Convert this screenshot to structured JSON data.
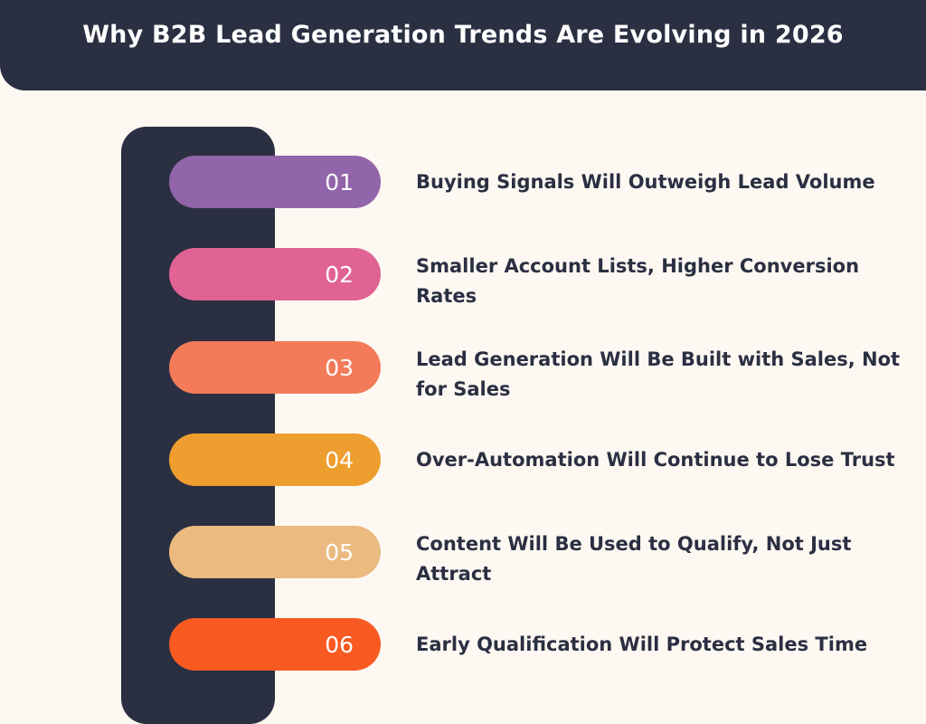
{
  "title": "Why B2B Lead Generation Trends Are Evolving in 2026",
  "items": [
    {
      "number": "01",
      "text": "Buying Signals Will Outweigh Lead Volume",
      "color": "#9264aa"
    },
    {
      "number": "02",
      "text": "Smaller Account Lists, Higher Conversion Rates",
      "color": "#e06393"
    },
    {
      "number": "03",
      "text": "Lead Generation Will Be Built with Sales, Not for Sales",
      "color": "#f37b5a"
    },
    {
      "number": "04",
      "text": "Over-Automation Will Continue to Lose Trust",
      "color": "#ee9e2e"
    },
    {
      "number": "05",
      "text": "Content Will Be Used to Qualify, Not Just Attract",
      "color": "#eaba80"
    },
    {
      "number": "06",
      "text": "Early Qualification Will Protect Sales Time",
      "color": "#f95a22"
    }
  ]
}
